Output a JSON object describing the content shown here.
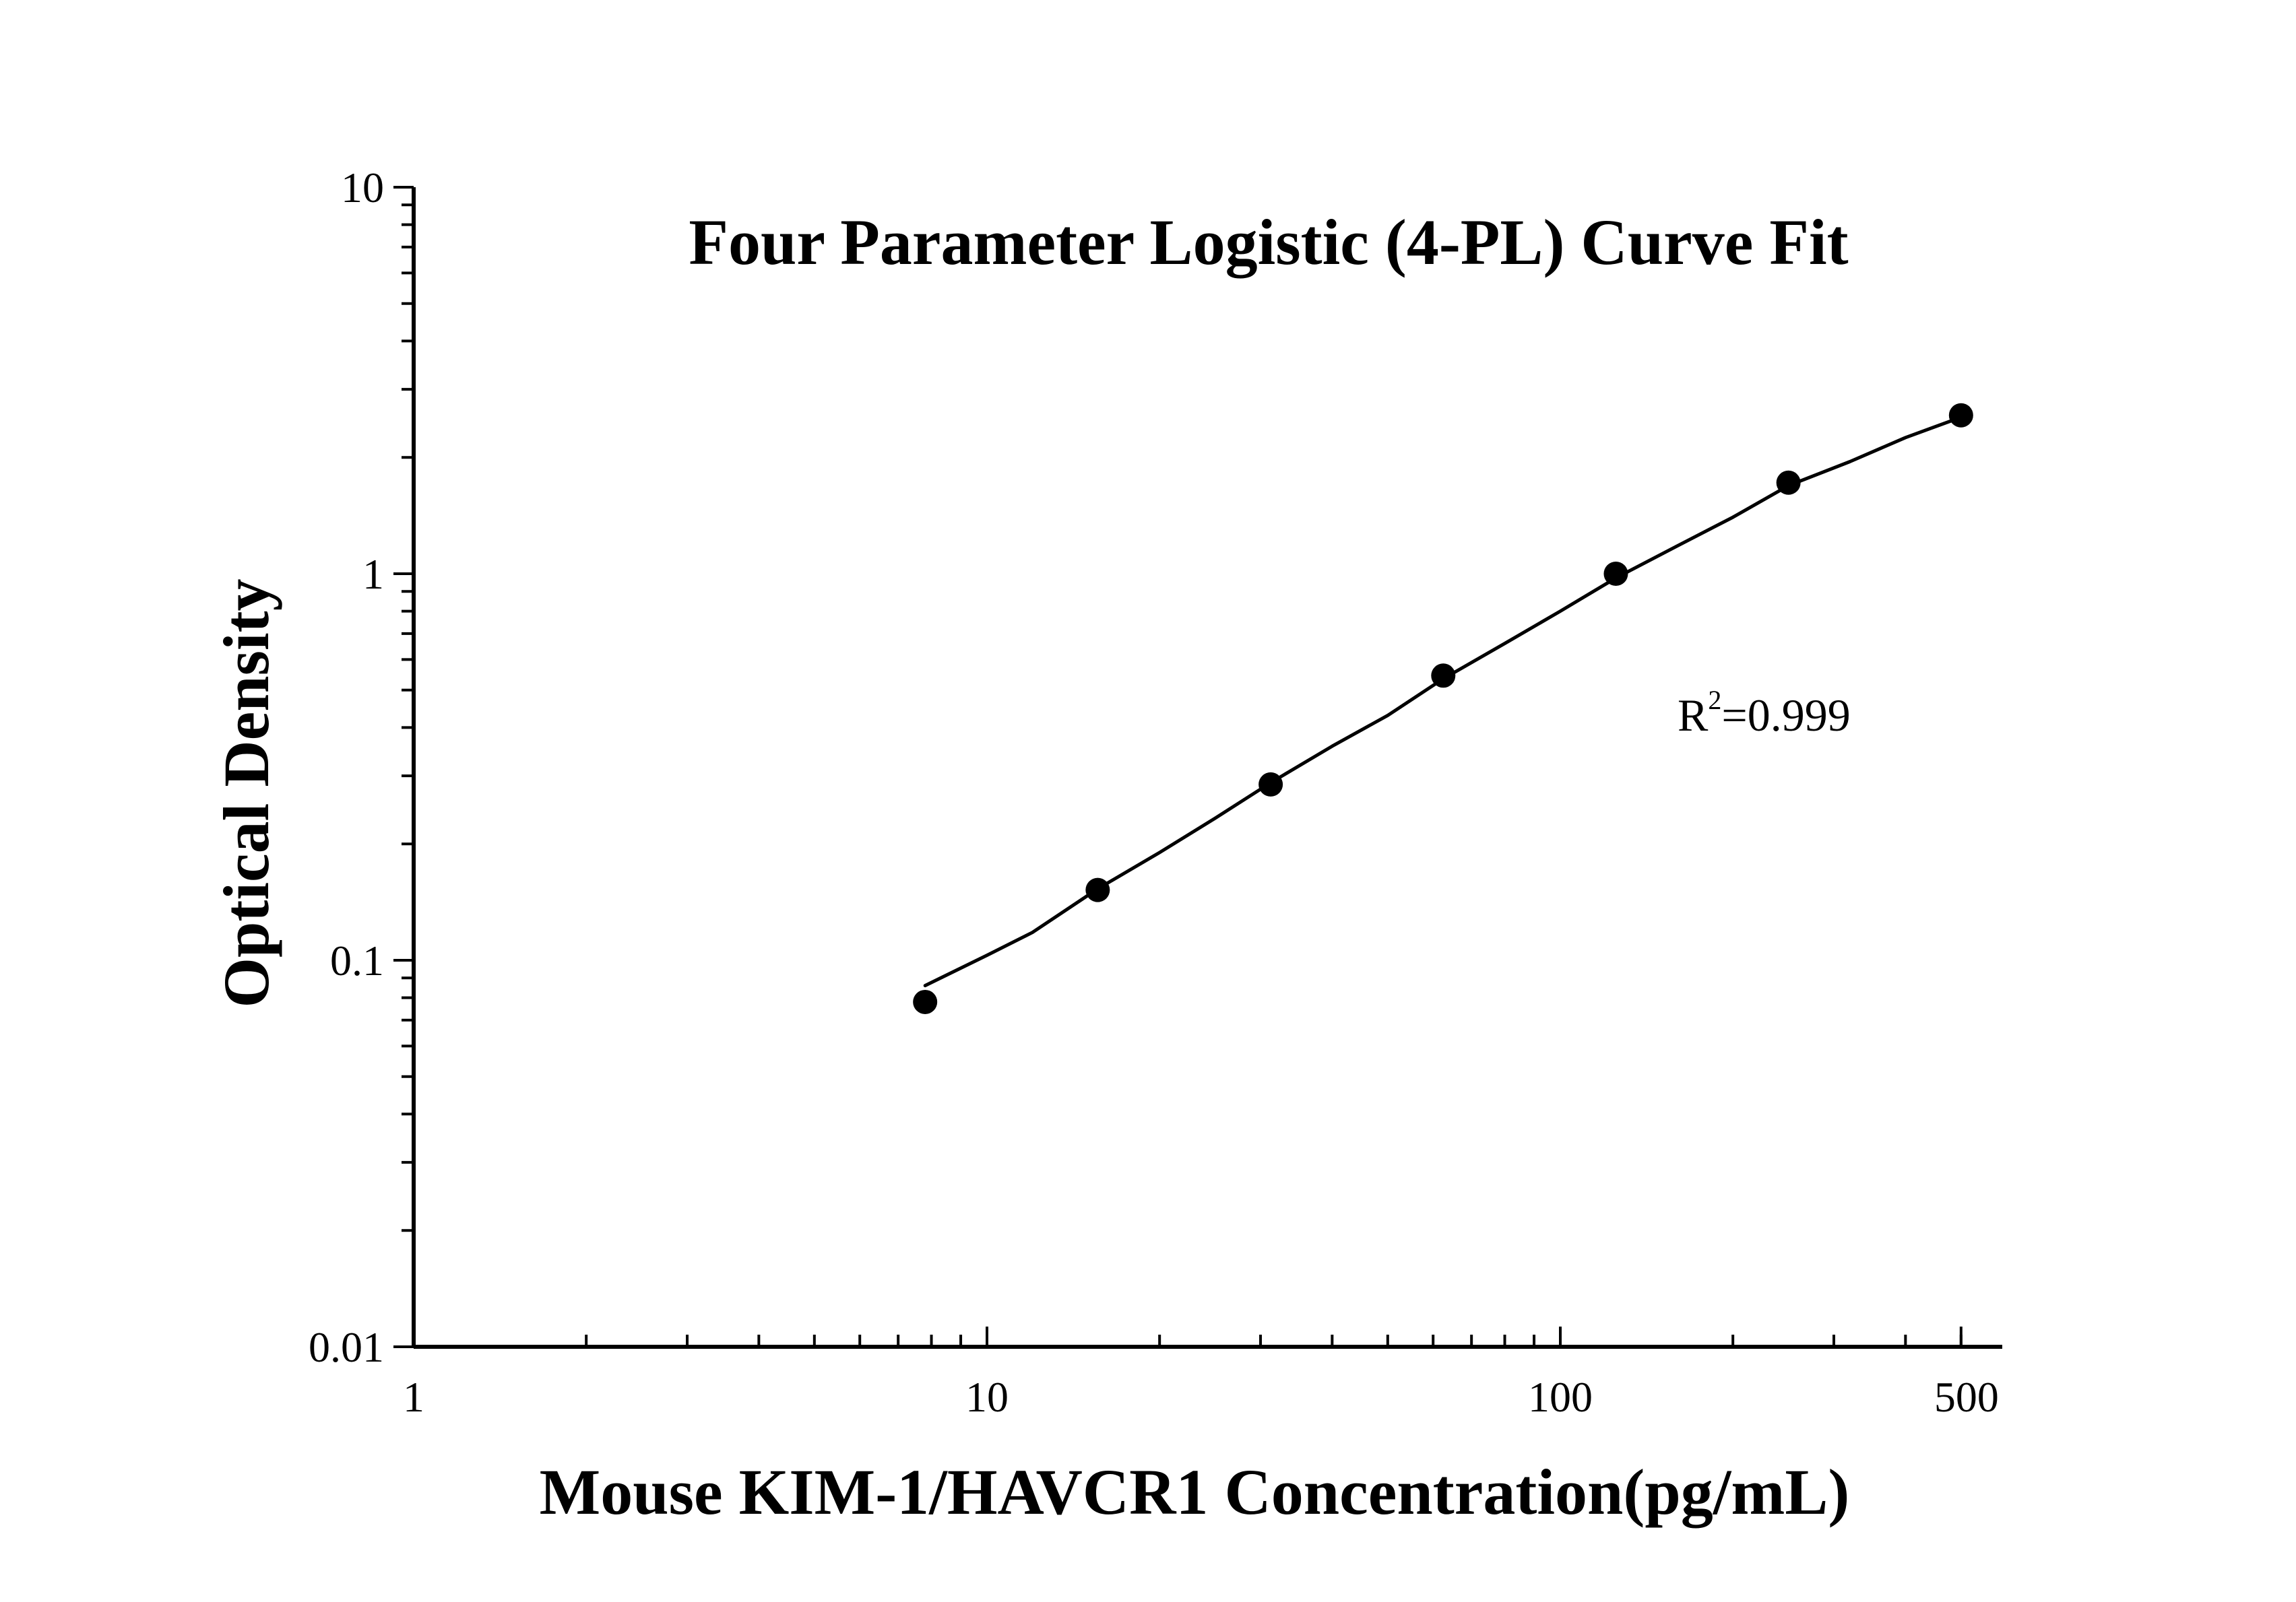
{
  "chart_data": {
    "type": "scatter",
    "title": "Four Parameter Logistic (4-PL) Curve Fit",
    "xlabel": "Mouse KIM-1/HAVCR1 Concentration(pg/mL)",
    "ylabel": "Optical Density",
    "x_scale": "log",
    "y_scale": "log",
    "xlim": [
      1,
      500
    ],
    "ylim": [
      0.01,
      10
    ],
    "x_ticks": [
      "1",
      "10",
      "100",
      "500"
    ],
    "y_ticks": [
      "0.01",
      "0.1",
      "1",
      "10"
    ],
    "grid": false,
    "legend": "none",
    "annotation": {
      "base": "R",
      "superscript": "2",
      "rest": "=0.999"
    },
    "series": [
      {
        "x": [
          7.8,
          15.6,
          31.25,
          62.5,
          125,
          250,
          500
        ],
        "y": [
          0.078,
          0.152,
          0.285,
          0.545,
          1.0,
          1.72,
          2.57
        ]
      }
    ],
    "fit_curve": {
      "x": [
        7.8,
        10,
        12,
        15.6,
        20,
        25,
        31.25,
        40,
        50,
        62.5,
        80,
        100,
        125,
        160,
        200,
        250,
        320,
        400,
        500
      ],
      "y": [
        0.086,
        0.103,
        0.118,
        0.153,
        0.19,
        0.233,
        0.288,
        0.358,
        0.43,
        0.535,
        0.66,
        0.8,
        0.975,
        1.18,
        1.4,
        1.69,
        1.95,
        2.25,
        2.54
      ]
    },
    "colors": {
      "marker": "#000000",
      "line": "#000000",
      "background": "#ffffff"
    }
  }
}
